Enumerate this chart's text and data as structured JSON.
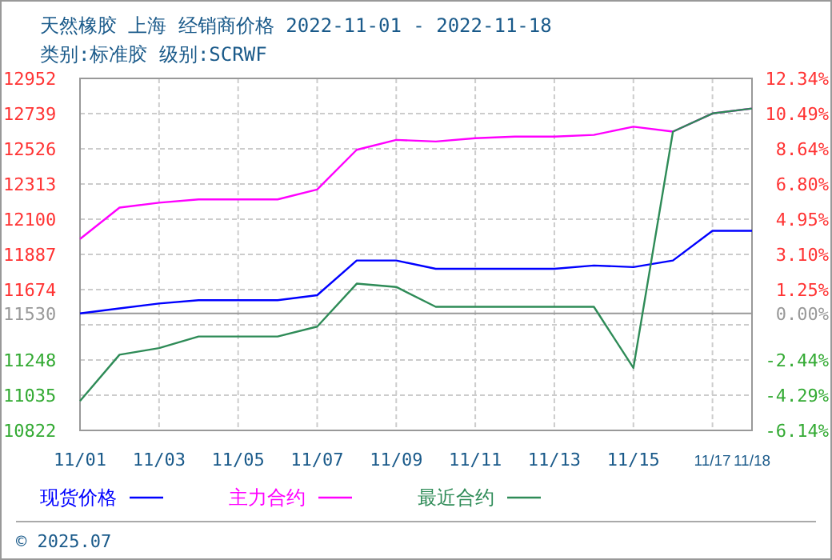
{
  "chart_data": {
    "type": "line",
    "title": "天然橡胶 上海 经销商价格 2022-11-01 - 2022-11-18",
    "subtitle": "类别:标准胶 级别:SCRWF",
    "x": [
      "2022-11-01",
      "2022-11-02",
      "2022-11-03",
      "2022-11-04",
      "2022-11-05",
      "2022-11-06",
      "2022-11-07",
      "2022-11-08",
      "2022-11-09",
      "2022-11-10",
      "2022-11-11",
      "2022-11-12",
      "2022-11-13",
      "2022-11-14",
      "2022-11-15",
      "2022-11-16",
      "2022-11-17",
      "2022-11-18"
    ],
    "series": [
      {
        "name": "现货价格",
        "color": "#0000ff",
        "values": [
          11530,
          11560,
          11590,
          11610,
          11610,
          11610,
          11640,
          11850,
          11850,
          11800,
          11800,
          11800,
          11800,
          11820,
          11810,
          11850,
          12030,
          12030
        ]
      },
      {
        "name": "主力合约",
        "color": "#ff00ff",
        "values": [
          11980,
          12170,
          12200,
          12220,
          12220,
          12220,
          12280,
          12520,
          12580,
          12570,
          12590,
          12600,
          12600,
          12610,
          12660,
          12630,
          12740,
          12770
        ]
      },
      {
        "name": "最近合约",
        "color": "#2e8b57",
        "values": [
          11000,
          11280,
          11320,
          11390,
          11390,
          11390,
          11450,
          11710,
          11690,
          11570,
          11570,
          11570,
          11570,
          11570,
          11200,
          12630,
          12740,
          12770
        ]
      }
    ],
    "xlim": [
      "2022-11-01",
      "2022-11-18"
    ],
    "xticks": [
      {
        "value": "2022-11-01",
        "label": "11/01"
      },
      {
        "value": "2022-11-03",
        "label": "11/03"
      },
      {
        "value": "2022-11-05",
        "label": "11/05"
      },
      {
        "value": "2022-11-07",
        "label": "11/07"
      },
      {
        "value": "2022-11-09",
        "label": "11/09"
      },
      {
        "value": "2022-11-11",
        "label": "11/11"
      },
      {
        "value": "2022-11-13",
        "label": "11/13"
      },
      {
        "value": "2022-11-15",
        "label": "11/15"
      },
      {
        "value": "2022-11-17",
        "label": "11/17"
      },
      {
        "value": "2022-11-18",
        "label": "11/18"
      }
    ],
    "ylim": [
      10822,
      12952
    ],
    "yticks": [
      10822,
      11035,
      11248,
      {
        "value": 11461,
        "label": null
      },
      11530,
      11674,
      11887,
      12100,
      12313,
      12526,
      12739,
      12952
    ],
    "y2lim": [
      -6.14,
      12.34
    ],
    "y2ticks": [
      {
        "value": -6.14,
        "label": "-6.14%"
      },
      {
        "value": -4.29,
        "label": "-4.29%"
      },
      {
        "value": -2.44,
        "label": "-2.44%"
      },
      {
        "value": 0,
        "label": "0.00%"
      },
      {
        "value": 1.25,
        "label": "1.25%"
      },
      {
        "value": 3.1,
        "label": "3.10%"
      },
      {
        "value": 4.95,
        "label": "4.95%"
      },
      {
        "value": 6.8,
        "label": "6.80%"
      },
      {
        "value": 8.64,
        "label": "8.64%"
      },
      {
        "value": 10.49,
        "label": "10.49%"
      },
      {
        "value": 12.34,
        "label": "12.34%"
      }
    ],
    "ref_lines": [
      {
        "axis": "y",
        "value": 11530,
        "color": "#999999"
      }
    ],
    "grid": true,
    "legend": "bottom",
    "line_style": "solid",
    "marker": "none",
    "annotations": [
      "© 2025.07"
    ]
  }
}
